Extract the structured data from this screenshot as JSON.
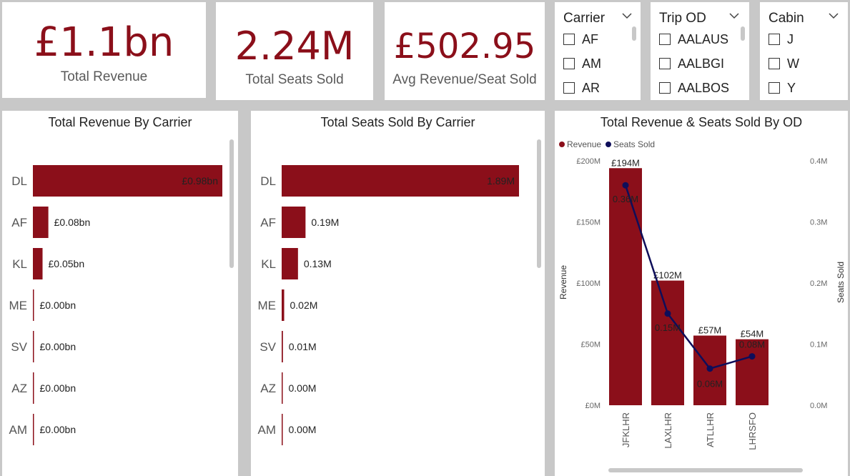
{
  "kpis": {
    "total_revenue": {
      "value": "£1.1bn",
      "label": "Total Revenue"
    },
    "total_seats": {
      "value": "2.24M",
      "label": "Total Seats Sold"
    },
    "avg_revenue": {
      "value": "£502.95",
      "label": "Avg Revenue/Seat Sold"
    }
  },
  "slicers": {
    "carrier": {
      "title": "Carrier",
      "items": [
        "AF",
        "AM",
        "AR"
      ]
    },
    "trip_od": {
      "title": "Trip OD",
      "items": [
        "AALAUS",
        "AALBGI",
        "AALBOS"
      ]
    },
    "cabin": {
      "title": "Cabin",
      "items": [
        "J",
        "W",
        "Y"
      ]
    }
  },
  "colors": {
    "bar": "#8b0f1a",
    "line": "#0e0e5a",
    "value": "#8b0f1a"
  },
  "chart_data": [
    {
      "type": "bar",
      "orientation": "horizontal",
      "title": "Total Revenue By Carrier",
      "categories": [
        "DL",
        "AF",
        "KL",
        "ME",
        "SV",
        "AZ",
        "AM"
      ],
      "values": [
        0.98,
        0.08,
        0.05,
        0.003,
        0.002,
        0.001,
        0.001
      ],
      "labels": [
        "£0.98bn",
        "£0.08bn",
        "£0.05bn",
        "£0.00bn",
        "£0.00bn",
        "£0.00bn",
        "£0.00bn"
      ],
      "unit": "£bn"
    },
    {
      "type": "bar",
      "orientation": "horizontal",
      "title": "Total Seats Sold By Carrier",
      "categories": [
        "DL",
        "AF",
        "KL",
        "ME",
        "SV",
        "AZ",
        "AM"
      ],
      "values": [
        1.89,
        0.19,
        0.13,
        0.02,
        0.01,
        0.002,
        0.001
      ],
      "labels": [
        "1.89M",
        "0.19M",
        "0.13M",
        "0.02M",
        "0.01M",
        "0.00M",
        "0.00M"
      ],
      "unit": "M"
    },
    {
      "type": "bar",
      "title": "Total Revenue & Seats Sold By OD",
      "categories": [
        "JFKLHR",
        "LAXLHR",
        "ATLLHR",
        "LHRSFO"
      ],
      "legend": [
        "Revenue",
        "Seats Sold"
      ],
      "series": [
        {
          "name": "Revenue",
          "type": "bar",
          "values": [
            194,
            102,
            57,
            54
          ],
          "labels": [
            "£194M",
            "£102M",
            "£57M",
            "£54M"
          ]
        },
        {
          "name": "Seats Sold",
          "type": "line",
          "values": [
            0.36,
            0.15,
            0.06,
            0.08
          ],
          "labels": [
            "0.36M",
            "0.15M",
            "0.06M",
            "0.08M"
          ]
        }
      ],
      "ylabel": "Revenue",
      "y2label": "Seats Sold",
      "ylim": [
        0,
        200
      ],
      "y2lim": [
        0,
        0.4
      ],
      "yticks": [
        "£0M",
        "£50M",
        "£100M",
        "£150M",
        "£200M"
      ],
      "y2ticks": [
        "0.0M",
        "0.1M",
        "0.2M",
        "0.3M",
        "0.4M"
      ]
    }
  ]
}
